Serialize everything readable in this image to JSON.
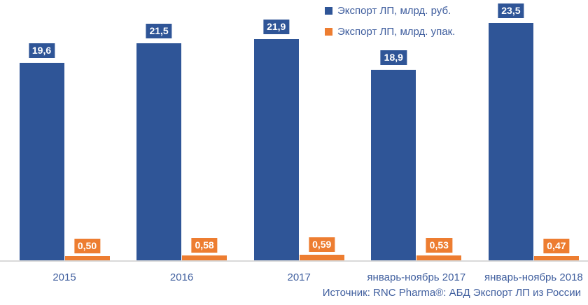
{
  "chart_data": {
    "type": "bar",
    "title": "",
    "categories": [
      "2015",
      "2016",
      "2017",
      "январь-ноябрь 2017",
      "январь-ноябрь 2018"
    ],
    "series": [
      {
        "name": "Экспорт ЛП, млрд. руб.",
        "color": "#2f5597",
        "values": [
          19.6,
          21.5,
          21.9,
          18.9,
          23.5
        ],
        "labels": [
          "19,6",
          "21,5",
          "21,9",
          "18,9",
          "23,5"
        ]
      },
      {
        "name": "Экспорт ЛП, млрд. упак.",
        "color": "#ed7d31",
        "values": [
          0.5,
          0.58,
          0.59,
          0.53,
          0.47
        ],
        "labels": [
          "0,50",
          "0,58",
          "0,59",
          "0,53",
          "0,47"
        ]
      }
    ],
    "xlabel": "",
    "ylabel": "",
    "ylim": [
      0,
      25.5
    ],
    "grid": false,
    "legend_position": "top-center",
    "value_labels_on_colored_boxes": true
  },
  "legend": {
    "items": [
      {
        "label": "Экспорт ЛП, млрд. руб.",
        "color": "#2f5597"
      },
      {
        "label": "Экспорт ЛП, млрд. упак.",
        "color": "#ed7d31"
      }
    ]
  },
  "source_note": "Источник: RNC Pharma®: АБД Экспорт ЛП из России",
  "colors": {
    "bar_rub": "#2f5597",
    "bar_upak": "#ed7d31",
    "axis_line": "#d9d9d9",
    "text_blue": "#3f5e9e",
    "value_text": "#ffffff",
    "background": "#ffffff"
  }
}
